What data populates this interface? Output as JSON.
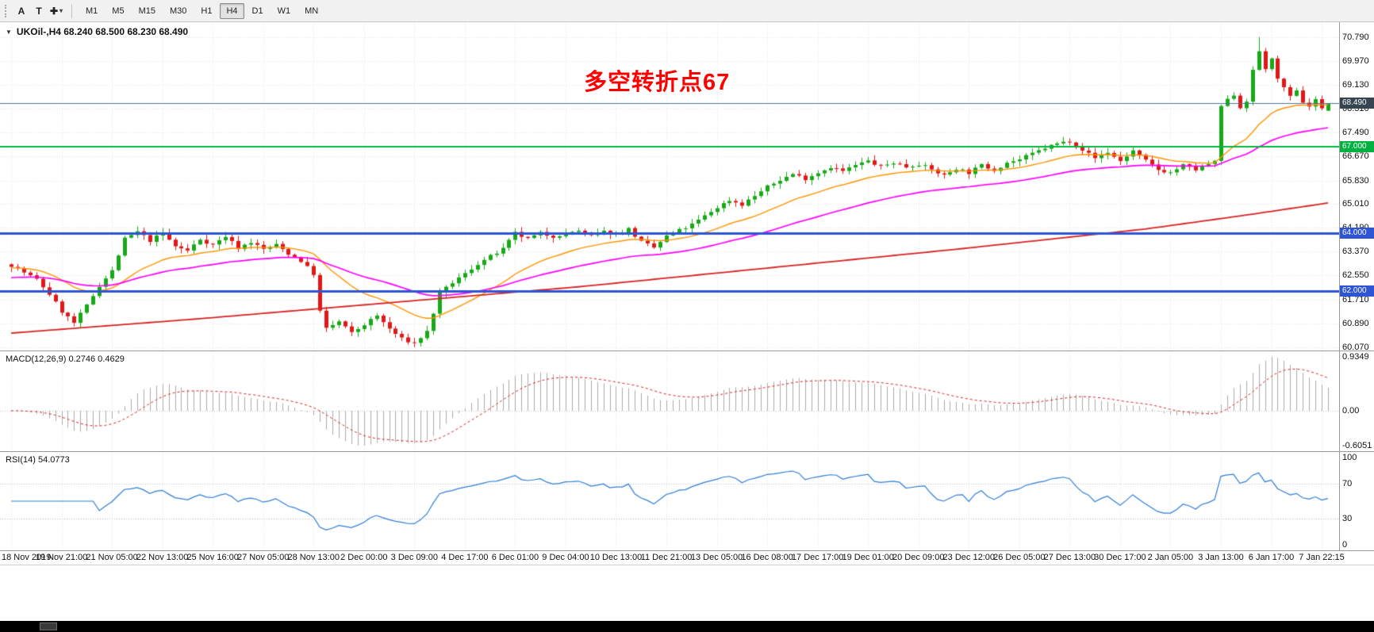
{
  "toolbar": {
    "tools": [
      {
        "name": "cursor-tool",
        "label": "A"
      },
      {
        "name": "text-tool",
        "label": "T"
      },
      {
        "name": "draw-tool",
        "label": "✚",
        "caret": true
      }
    ],
    "timeframes": [
      {
        "label": "M1"
      },
      {
        "label": "M5"
      },
      {
        "label": "M15"
      },
      {
        "label": "M30"
      },
      {
        "label": "H1"
      },
      {
        "label": "H4",
        "active": true
      },
      {
        "label": "D1"
      },
      {
        "label": "W1"
      },
      {
        "label": "MN"
      }
    ]
  },
  "chart": {
    "symbol_line": "UKOil-,H4  68.240 68.500 68.230 68.490",
    "collapse_icon": "▼",
    "annotation": {
      "text": "多空转折点67",
      "color": "#ff0000"
    }
  },
  "macd": {
    "header": "MACD(12,26,9) 0.2746 0.4629"
  },
  "rsi": {
    "header": "RSI(14) 54.0773"
  },
  "chart_data": {
    "type": "candlestick",
    "symbol": "UKOil-",
    "timeframe": "H4",
    "current_ohlc": {
      "open": 68.24,
      "high": 68.5,
      "low": 68.23,
      "close": 68.49
    },
    "candle_count": 210,
    "candles_per_time_label": 8,
    "up_color": "#18a818",
    "down_color": "#e01818",
    "price_axis_range": [
      59.95,
      71.3
    ],
    "price_axis_ticks": [
      "70.790",
      "69.970",
      "69.130",
      "68.310",
      "67.490",
      "66.670",
      "65.830",
      "65.010",
      "64.190",
      "63.370",
      "62.550",
      "61.710",
      "60.890",
      "60.070"
    ],
    "time_labels": [
      "18 Nov 2019",
      "19 Nov 21:00",
      "21 Nov 05:00",
      "22 Nov 13:00",
      "25 Nov 16:00",
      "27 Nov 05:00",
      "28 Nov 13:00",
      "2 Dec 00:00",
      "3 Dec 09:00",
      "4 Dec 17:00",
      "6 Dec 01:00",
      "9 Dec 04:00",
      "10 Dec 13:00",
      "11 Dec 21:00",
      "13 Dec 05:00",
      "16 Dec 08:00",
      "17 Dec 17:00",
      "19 Dec 01:00",
      "20 Dec 09:00",
      "23 Dec 12:00",
      "26 Dec 05:00",
      "27 Dec 13:00",
      "30 Dec 17:00",
      "2 Jan 05:00",
      "3 Jan 13:00",
      "6 Jan 17:00",
      "7 Jan 22:15"
    ],
    "levels": [
      {
        "name": "current-price",
        "price": 68.49,
        "label": "68.490",
        "line_color": "#4f7394",
        "tag_bg": "#36454f",
        "width": 1
      },
      {
        "name": "level-67",
        "price": 67.0,
        "label": "67.000",
        "line_color": "#00b83c",
        "tag_bg": "#00b140",
        "width": 2
      },
      {
        "name": "level-64",
        "price": 64.0,
        "label": "64.000",
        "line_color": "#2e55d4",
        "tag_bg": "#2e55d4",
        "width": 3
      },
      {
        "name": "level-62",
        "price": 62.0,
        "label": "62.000",
        "line_color": "#2e55d4",
        "tag_bg": "#2e55d4",
        "width": 3
      }
    ],
    "close_anchors": [
      [
        0,
        62.9
      ],
      [
        2,
        62.65
      ],
      [
        4,
        62.4
      ],
      [
        6,
        61.9
      ],
      [
        8,
        61.3
      ],
      [
        10,
        60.9
      ],
      [
        12,
        61.5
      ],
      [
        14,
        62.2
      ],
      [
        16,
        62.7
      ],
      [
        18,
        63.8
      ],
      [
        20,
        64.05
      ],
      [
        22,
        63.75
      ],
      [
        24,
        64.0
      ],
      [
        26,
        63.55
      ],
      [
        28,
        63.4
      ],
      [
        30,
        63.8
      ],
      [
        32,
        63.6
      ],
      [
        34,
        63.9
      ],
      [
        36,
        63.5
      ],
      [
        38,
        63.7
      ],
      [
        40,
        63.45
      ],
      [
        42,
        63.6
      ],
      [
        44,
        63.3
      ],
      [
        46,
        63.05
      ],
      [
        48,
        62.6
      ],
      [
        49,
        61.3
      ],
      [
        50,
        60.7
      ],
      [
        52,
        60.95
      ],
      [
        54,
        60.55
      ],
      [
        56,
        60.85
      ],
      [
        58,
        61.15
      ],
      [
        60,
        60.7
      ],
      [
        62,
        60.35
      ],
      [
        64,
        60.2
      ],
      [
        66,
        60.6
      ],
      [
        68,
        61.9
      ],
      [
        70,
        62.3
      ],
      [
        72,
        62.6
      ],
      [
        74,
        62.95
      ],
      [
        76,
        63.2
      ],
      [
        78,
        63.45
      ],
      [
        80,
        64.0
      ],
      [
        82,
        63.8
      ],
      [
        84,
        64.0
      ],
      [
        86,
        63.9
      ],
      [
        88,
        64.0
      ],
      [
        90,
        64.1
      ],
      [
        92,
        63.9
      ],
      [
        94,
        64.05
      ],
      [
        96,
        64.0
      ],
      [
        98,
        64.15
      ],
      [
        100,
        63.7
      ],
      [
        102,
        63.5
      ],
      [
        104,
        63.9
      ],
      [
        106,
        64.1
      ],
      [
        108,
        64.3
      ],
      [
        110,
        64.6
      ],
      [
        112,
        64.9
      ],
      [
        114,
        65.15
      ],
      [
        116,
        65.0
      ],
      [
        118,
        65.3
      ],
      [
        120,
        65.6
      ],
      [
        122,
        65.85
      ],
      [
        124,
        66.05
      ],
      [
        126,
        65.9
      ],
      [
        128,
        66.1
      ],
      [
        130,
        66.3
      ],
      [
        132,
        66.15
      ],
      [
        134,
        66.35
      ],
      [
        136,
        66.5
      ],
      [
        138,
        66.3
      ],
      [
        140,
        66.45
      ],
      [
        142,
        66.3
      ],
      [
        144,
        66.4
      ],
      [
        146,
        66.2
      ],
      [
        148,
        66.0
      ],
      [
        150,
        66.25
      ],
      [
        152,
        66.1
      ],
      [
        154,
        66.35
      ],
      [
        156,
        66.2
      ],
      [
        158,
        66.45
      ],
      [
        160,
        66.55
      ],
      [
        162,
        66.75
      ],
      [
        164,
        66.95
      ],
      [
        166,
        67.1
      ],
      [
        168,
        67.2
      ],
      [
        170,
        66.9
      ],
      [
        172,
        66.6
      ],
      [
        174,
        66.8
      ],
      [
        176,
        66.5
      ],
      [
        178,
        66.85
      ],
      [
        180,
        66.5
      ],
      [
        182,
        66.2
      ],
      [
        184,
        66.1
      ],
      [
        186,
        66.35
      ],
      [
        188,
        66.2
      ],
      [
        190,
        66.4
      ],
      [
        191,
        66.45
      ],
      [
        192,
        68.4
      ],
      [
        194,
        68.8
      ],
      [
        195,
        68.35
      ],
      [
        196,
        68.6
      ],
      [
        197,
        69.6
      ],
      [
        198,
        70.3
      ],
      [
        199,
        69.7
      ],
      [
        200,
        70.0
      ],
      [
        201,
        69.4
      ],
      [
        202,
        69.0
      ],
      [
        203,
        68.7
      ],
      [
        204,
        68.9
      ],
      [
        205,
        68.55
      ],
      [
        206,
        68.4
      ],
      [
        207,
        68.65
      ],
      [
        208,
        68.3
      ],
      [
        209,
        68.49
      ]
    ],
    "extremes": {
      "high": {
        "index": 198,
        "price": 70.79
      },
      "low": {
        "index": 64,
        "price": 60.07
      }
    },
    "moving_averages": [
      {
        "name": "ma-fast",
        "type": "ema",
        "period": 20,
        "seed": 62.8,
        "color": "#ff9500",
        "width": 1.4
      },
      {
        "name": "ma-medium",
        "type": "ema",
        "period": 50,
        "seed": 62.45,
        "color": "#ff00ff",
        "width": 1.7
      },
      {
        "name": "ma-slow",
        "type": "anchors",
        "color": "#d92323",
        "width": 1.8,
        "anchors": [
          [
            0,
            60.55
          ],
          [
            30,
            61.05
          ],
          [
            60,
            61.6
          ],
          [
            90,
            62.15
          ],
          [
            120,
            62.8
          ],
          [
            150,
            63.45
          ],
          [
            180,
            64.15
          ],
          [
            195,
            64.6
          ],
          [
            209,
            65.05
          ]
        ]
      }
    ],
    "macd": {
      "fast": 12,
      "slow": 26,
      "signal": 9,
      "value_main": 0.2746,
      "value_signal": 0.4629,
      "axis_range": [
        -0.6051,
        0.9349
      ],
      "axis_ticks": [
        "0.9349",
        "0.00",
        "-0.6051"
      ],
      "histogram_color": "#ababab",
      "signal_color": "#e02020"
    },
    "rsi": {
      "period": 14,
      "value": 54.0773,
      "axis_range": [
        0,
        100
      ],
      "axis_ticks": [
        "100",
        "70",
        "30",
        "0"
      ],
      "level_lines": [
        70,
        30
      ],
      "line_color": "#2f7ed8"
    }
  }
}
